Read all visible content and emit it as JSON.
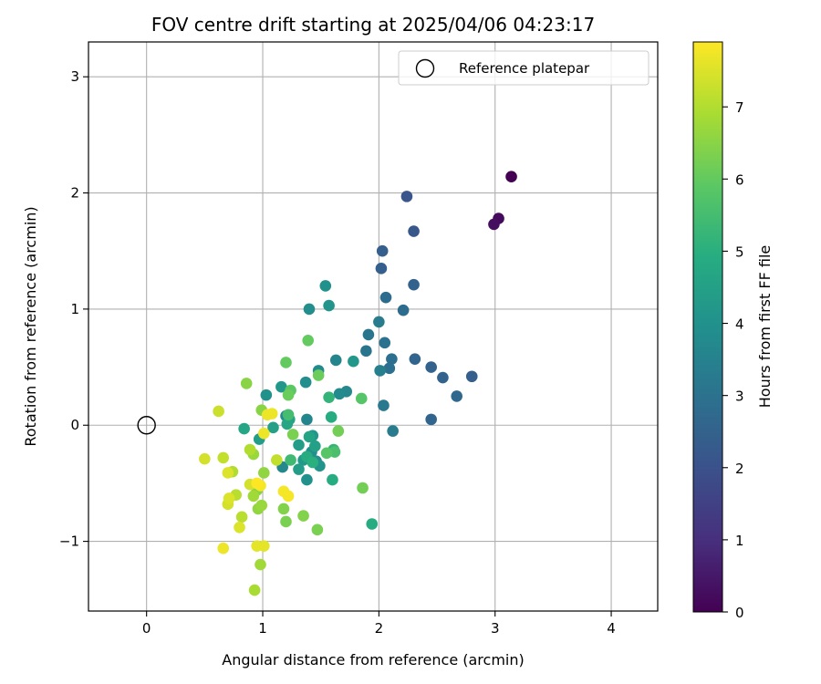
{
  "chart_data": {
    "type": "scatter",
    "title": "FOV centre drift starting at 2025/04/06 04:23:17",
    "xlabel": "Angular distance from reference (arcmin)",
    "ylabel": "Rotation from reference (arcmin)",
    "xlim": [
      -0.5,
      4.4
    ],
    "ylim": [
      -1.6,
      3.3
    ],
    "xticks": [
      0,
      1,
      2,
      3,
      4
    ],
    "yticks": [
      -1,
      0,
      1,
      2,
      3
    ],
    "grid": true,
    "legend": {
      "position": "top-right",
      "entries": [
        "Reference platepar"
      ]
    },
    "reference_point": {
      "name": "Reference platepar",
      "x": 0,
      "y": 0
    },
    "colorbar": {
      "label": "Hours from first FF file",
      "colormap": "viridis",
      "range": [
        0,
        7.9
      ],
      "ticks": [
        0,
        1,
        2,
        3,
        4,
        5,
        6,
        7
      ]
    },
    "points": [
      {
        "x": 3.14,
        "y": 2.14,
        "c": 0.0
      },
      {
        "x": 3.03,
        "y": 1.78,
        "c": 0.2
      },
      {
        "x": 2.99,
        "y": 1.73,
        "c": 0.3
      },
      {
        "x": 2.24,
        "y": 1.97,
        "c": 2.1
      },
      {
        "x": 2.3,
        "y": 1.67,
        "c": 2.2
      },
      {
        "x": 2.03,
        "y": 1.5,
        "c": 2.4
      },
      {
        "x": 2.02,
        "y": 1.35,
        "c": 2.4
      },
      {
        "x": 2.3,
        "y": 1.21,
        "c": 2.5
      },
      {
        "x": 2.8,
        "y": 0.42,
        "c": 2.4
      },
      {
        "x": 2.55,
        "y": 0.41,
        "c": 2.5
      },
      {
        "x": 2.45,
        "y": 0.5,
        "c": 2.5
      },
      {
        "x": 2.31,
        "y": 0.57,
        "c": 2.6
      },
      {
        "x": 2.67,
        "y": 0.25,
        "c": 2.7
      },
      {
        "x": 2.45,
        "y": 0.05,
        "c": 2.6
      },
      {
        "x": 2.06,
        "y": 1.1,
        "c": 2.8
      },
      {
        "x": 2.21,
        "y": 0.99,
        "c": 2.8
      },
      {
        "x": 2.11,
        "y": 0.57,
        "c": 2.9
      },
      {
        "x": 2.09,
        "y": 0.49,
        "c": 2.9
      },
      {
        "x": 2.05,
        "y": 0.71,
        "c": 3.0
      },
      {
        "x": 1.89,
        "y": 0.64,
        "c": 3.1
      },
      {
        "x": 1.91,
        "y": 0.78,
        "c": 3.1
      },
      {
        "x": 2.04,
        "y": 0.17,
        "c": 3.2
      },
      {
        "x": 2.12,
        "y": -0.05,
        "c": 3.3
      },
      {
        "x": 2.0,
        "y": 0.89,
        "c": 3.3
      },
      {
        "x": 2.01,
        "y": 0.47,
        "c": 3.4
      },
      {
        "x": 1.38,
        "y": 0.05,
        "c": 3.6
      },
      {
        "x": 1.63,
        "y": 0.56,
        "c": 3.6
      },
      {
        "x": 1.72,
        "y": 0.29,
        "c": 3.7
      },
      {
        "x": 1.66,
        "y": 0.27,
        "c": 3.8
      },
      {
        "x": 1.48,
        "y": 0.47,
        "c": 3.8
      },
      {
        "x": 1.37,
        "y": 0.37,
        "c": 3.9
      },
      {
        "x": 1.4,
        "y": 1.0,
        "c": 3.9
      },
      {
        "x": 1.54,
        "y": 1.2,
        "c": 4.0
      },
      {
        "x": 1.57,
        "y": 1.03,
        "c": 4.1
      },
      {
        "x": 1.78,
        "y": 0.55,
        "c": 4.2
      },
      {
        "x": 1.17,
        "y": -0.36,
        "c": 3.7
      },
      {
        "x": 1.2,
        "y": 0.08,
        "c": 3.8
      },
      {
        "x": 1.03,
        "y": 0.26,
        "c": 4.0
      },
      {
        "x": 1.16,
        "y": 0.33,
        "c": 4.2
      },
      {
        "x": 1.42,
        "y": -0.23,
        "c": 3.9
      },
      {
        "x": 1.46,
        "y": -0.31,
        "c": 3.9
      },
      {
        "x": 1.38,
        "y": -0.47,
        "c": 4.0
      },
      {
        "x": 1.49,
        "y": -0.35,
        "c": 4.1
      },
      {
        "x": 1.43,
        "y": -0.09,
        "c": 4.2
      },
      {
        "x": 1.35,
        "y": -0.3,
        "c": 4.3
      },
      {
        "x": 1.31,
        "y": -0.17,
        "c": 4.4
      },
      {
        "x": 1.31,
        "y": -0.38,
        "c": 4.4
      },
      {
        "x": 1.45,
        "y": -0.18,
        "c": 4.5
      },
      {
        "x": 1.4,
        "y": -0.1,
        "c": 4.6
      },
      {
        "x": 1.09,
        "y": -0.02,
        "c": 4.5
      },
      {
        "x": 0.97,
        "y": -0.12,
        "c": 4.4
      },
      {
        "x": 1.23,
        "y": 0.05,
        "c": 4.6
      },
      {
        "x": 1.21,
        "y": 0.01,
        "c": 4.7
      },
      {
        "x": 0.84,
        "y": -0.03,
        "c": 4.7
      },
      {
        "x": 1.59,
        "y": 0.07,
        "c": 4.9
      },
      {
        "x": 1.6,
        "y": -0.47,
        "c": 4.9
      },
      {
        "x": 1.38,
        "y": -0.27,
        "c": 4.9
      },
      {
        "x": 1.43,
        "y": -0.32,
        "c": 5.0
      },
      {
        "x": 1.57,
        "y": 0.24,
        "c": 5.2
      },
      {
        "x": 1.61,
        "y": -0.21,
        "c": 5.2
      },
      {
        "x": 1.94,
        "y": -0.85,
        "c": 4.9
      },
      {
        "x": 1.22,
        "y": 0.09,
        "c": 5.5
      },
      {
        "x": 1.24,
        "y": -0.3,
        "c": 5.4
      },
      {
        "x": 1.62,
        "y": -0.23,
        "c": 5.6
      },
      {
        "x": 1.55,
        "y": -0.24,
        "c": 5.8
      },
      {
        "x": 1.85,
        "y": 0.23,
        "c": 5.8
      },
      {
        "x": 1.24,
        "y": 0.3,
        "c": 5.9
      },
      {
        "x": 1.2,
        "y": 0.54,
        "c": 6.0
      },
      {
        "x": 1.39,
        "y": 0.73,
        "c": 6.0
      },
      {
        "x": 1.48,
        "y": 0.43,
        "c": 6.1
      },
      {
        "x": 1.22,
        "y": 0.26,
        "c": 6.1
      },
      {
        "x": 1.65,
        "y": -0.05,
        "c": 6.2
      },
      {
        "x": 1.86,
        "y": -0.54,
        "c": 6.2
      },
      {
        "x": 1.26,
        "y": -0.08,
        "c": 6.3
      },
      {
        "x": 1.2,
        "y": -0.83,
        "c": 6.3
      },
      {
        "x": 1.47,
        "y": -0.9,
        "c": 6.3
      },
      {
        "x": 1.35,
        "y": -0.78,
        "c": 6.4
      },
      {
        "x": 1.18,
        "y": -0.72,
        "c": 6.4
      },
      {
        "x": 0.86,
        "y": 0.36,
        "c": 6.5
      },
      {
        "x": 0.99,
        "y": 0.13,
        "c": 6.5
      },
      {
        "x": 0.95,
        "y": -0.56,
        "c": 6.5
      },
      {
        "x": 1.01,
        "y": -0.41,
        "c": 6.6
      },
      {
        "x": 0.96,
        "y": -0.72,
        "c": 6.6
      },
      {
        "x": 0.99,
        "y": -0.69,
        "c": 6.7
      },
      {
        "x": 0.92,
        "y": -0.25,
        "c": 6.7
      },
      {
        "x": 0.92,
        "y": -0.61,
        "c": 6.8
      },
      {
        "x": 0.98,
        "y": -1.2,
        "c": 6.8
      },
      {
        "x": 0.93,
        "y": -1.42,
        "c": 6.9
      },
      {
        "x": 0.89,
        "y": -0.21,
        "c": 7.0
      },
      {
        "x": 0.74,
        "y": -0.4,
        "c": 7.0
      },
      {
        "x": 0.77,
        "y": -0.6,
        "c": 7.1
      },
      {
        "x": 0.82,
        "y": -0.79,
        "c": 7.1
      },
      {
        "x": 0.66,
        "y": -0.28,
        "c": 7.2
      },
      {
        "x": 1.12,
        "y": -0.3,
        "c": 7.2
      },
      {
        "x": 0.62,
        "y": 0.12,
        "c": 7.3
      },
      {
        "x": 0.5,
        "y": -0.29,
        "c": 7.4
      },
      {
        "x": 0.7,
        "y": -0.68,
        "c": 7.4
      },
      {
        "x": 0.89,
        "y": -0.51,
        "c": 7.4
      },
      {
        "x": 0.7,
        "y": -0.41,
        "c": 7.5
      },
      {
        "x": 0.71,
        "y": -0.63,
        "c": 7.5
      },
      {
        "x": 0.8,
        "y": -0.88,
        "c": 7.5
      },
      {
        "x": 0.95,
        "y": -1.04,
        "c": 7.6
      },
      {
        "x": 1.01,
        "y": -1.04,
        "c": 7.6
      },
      {
        "x": 0.66,
        "y": -1.06,
        "c": 7.7
      },
      {
        "x": 1.04,
        "y": 0.09,
        "c": 7.7
      },
      {
        "x": 1.08,
        "y": 0.1,
        "c": 7.7
      },
      {
        "x": 1.01,
        "y": -0.07,
        "c": 7.7
      },
      {
        "x": 1.18,
        "y": -0.57,
        "c": 7.8
      },
      {
        "x": 1.22,
        "y": -0.61,
        "c": 7.8
      },
      {
        "x": 0.98,
        "y": -0.52,
        "c": 7.8
      },
      {
        "x": 0.95,
        "y": -0.5,
        "c": 7.9
      }
    ]
  }
}
